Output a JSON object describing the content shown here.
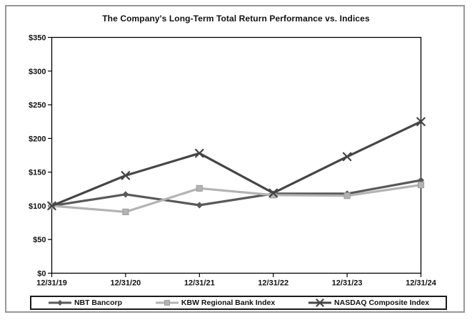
{
  "figure": {
    "title": "The Company's Long-Term Total Return Performance vs. Indices"
  },
  "chart_data": {
    "type": "line",
    "x": [
      "12/31/19",
      "12/31/20",
      "12/31/21",
      "12/31/22",
      "12/31/23",
      "12/31/24"
    ],
    "series": [
      {
        "name": "NBT Bancorp",
        "marker": "diamond",
        "color": "#595959",
        "values": [
          100,
          117,
          101,
          118,
          118,
          138
        ]
      },
      {
        "name": "KBW Regional Bank Index",
        "marker": "square",
        "color": "#b3b3b3",
        "values": [
          100,
          91,
          126,
          116,
          115,
          131
        ]
      },
      {
        "name": "NASDAQ Composite Index",
        "marker": "x",
        "color": "#454545",
        "values": [
          100,
          145,
          178,
          119,
          173,
          225
        ]
      }
    ],
    "ylim": [
      0,
      350
    ],
    "y_tick_step": 50,
    "y_tick_prefix": "$",
    "y_tick_labels": [
      "$350",
      "$300",
      "$250",
      "$200",
      "$150",
      "$100",
      "$50",
      "$0"
    ],
    "grid": false,
    "legend_position": "bottom"
  }
}
